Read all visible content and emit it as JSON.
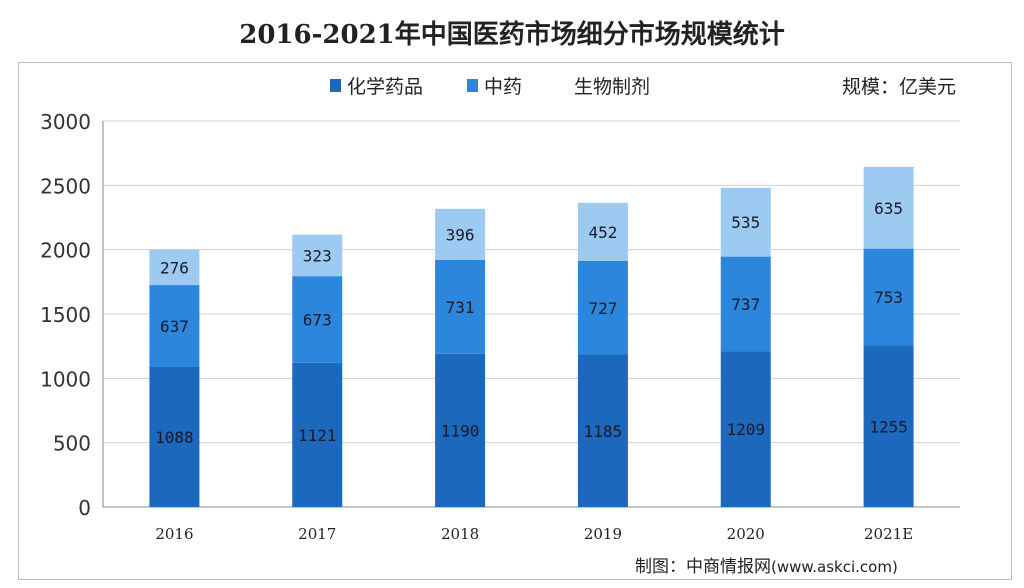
{
  "chart_data": {
    "type": "bar",
    "stacked": true,
    "title": "2016-2021年中国医药市场细分市场规模统计",
    "unit_label": "规模：亿美元",
    "categories": [
      "2016",
      "2017",
      "2018",
      "2019",
      "2020",
      "2021E"
    ],
    "series": [
      {
        "name": "化学药品",
        "values": [
          1088,
          1121,
          1190,
          1185,
          1209,
          1255
        ],
        "color": "#1b68bd"
      },
      {
        "name": "中药",
        "values": [
          637,
          673,
          731,
          727,
          737,
          753
        ],
        "color": "#2b86dc"
      },
      {
        "name": "生物制剂",
        "values": [
          276,
          323,
          396,
          452,
          535,
          635
        ],
        "color": "#9ccaf1"
      }
    ],
    "ylim": [
      0,
      3000
    ],
    "yticks": [
      0,
      500,
      1000,
      1500,
      2000,
      2500,
      3000
    ],
    "grid": true,
    "legend_position": "top",
    "source": {
      "label": "制图：中商情报网",
      "url": "(www.askci.com)"
    }
  }
}
